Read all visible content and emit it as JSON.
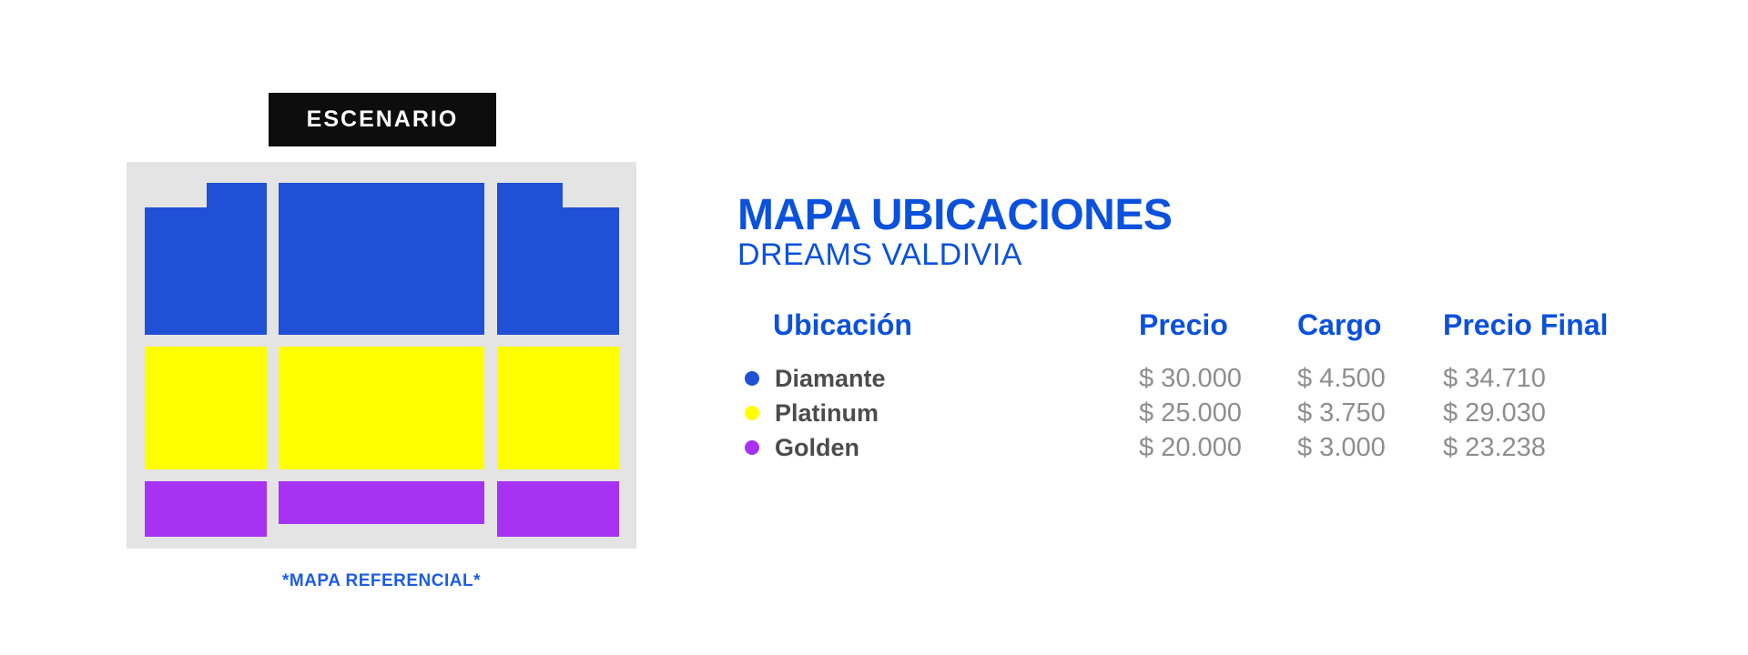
{
  "stage": {
    "label": "ESCENARIO"
  },
  "colors": {
    "diamante": "#1f50d6",
    "platinum": "#ffff00",
    "golden": "#a832f3",
    "map_bg": "#e4e4e4",
    "stage_bg": "#0d0d0d",
    "title_blue": "#0b51dc",
    "note_blue": "#1d5ce4",
    "label_dark": "#4c4c4c",
    "value_gray": "#8e8e8e"
  },
  "map": {
    "note": "*MAPA REFERENCIAL*"
  },
  "panel": {
    "title": "MAPA UBICACIONES",
    "subtitle": "DREAMS VALDIVIA"
  },
  "table": {
    "headers": {
      "ubicacion": "Ubicación",
      "precio": "Precio",
      "cargo": "Cargo",
      "precio_final": "Precio Final"
    },
    "rows": [
      {
        "name": "Diamante",
        "precio": "$ 30.000",
        "cargo": "$ 4.500",
        "precio_final": "$ 34.710"
      },
      {
        "name": "Platinum",
        "precio": "$ 25.000",
        "cargo": "$ 3.750",
        "precio_final": "$ 29.030"
      },
      {
        "name": "Golden",
        "precio": "$ 20.000",
        "cargo": "$ 3.000",
        "precio_final": "$ 23.238"
      }
    ]
  }
}
